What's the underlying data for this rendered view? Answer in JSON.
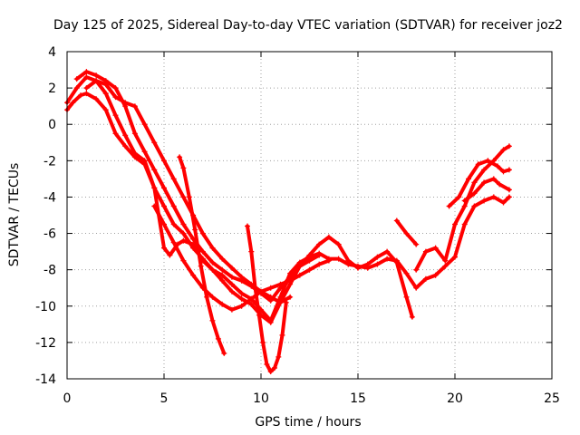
{
  "chart_data": {
    "type": "scatter",
    "title": "Day 125 of 2025, Sidereal Day-to-day VTEC variation (SDTVAR) for receiver joz2",
    "xlabel": "GPS time / hours",
    "ylabel": "SDTVAR / TECUs",
    "xlim": [
      0,
      25
    ],
    "ylim": [
      -14,
      4
    ],
    "x_ticks": [
      0,
      5,
      10,
      15,
      20,
      25
    ],
    "y_ticks": [
      4,
      2,
      0,
      -2,
      -4,
      -6,
      -8,
      -10,
      -12,
      -14
    ],
    "grid": true,
    "legend": "none",
    "marker": "plus",
    "color": "#ff0000",
    "series": [
      {
        "x": [
          0.0,
          0.3,
          0.7,
          1.0,
          1.5,
          2.0,
          2.5,
          3.0,
          3.5,
          4.0,
          4.5,
          5.0,
          5.3,
          5.7,
          6.0,
          6.5,
          7.0,
          7.5,
          8.0,
          8.5,
          9.0,
          9.5,
          10.0,
          10.5,
          11.0,
          11.5,
          12.0,
          12.5,
          13.0,
          13.5,
          14.0,
          14.5,
          15.0,
          15.5,
          16.0,
          16.5,
          17.0,
          17.5,
          18.0,
          18.5,
          19.0,
          19.5,
          20.0,
          20.5,
          21.0,
          21.5,
          22.0,
          22.5,
          22.8
        ],
        "y": [
          0.8,
          1.2,
          1.6,
          1.7,
          1.4,
          0.8,
          -0.5,
          -1.2,
          -1.8,
          -2.2,
          -3.5,
          -6.8,
          -7.2,
          -6.6,
          -6.4,
          -6.6,
          -7.5,
          -8.0,
          -8.3,
          -8.8,
          -9.3,
          -9.6,
          -10.2,
          -10.8,
          -9.5,
          -8.2,
          -7.6,
          -7.3,
          -7.1,
          -7.4,
          -7.4,
          -7.7,
          -7.8,
          -7.9,
          -7.7,
          -7.4,
          -7.5,
          -8.2,
          -9.0,
          -8.5,
          -8.3,
          -7.8,
          -7.3,
          -5.5,
          -4.5,
          -4.2,
          -4.0,
          -4.3,
          -4.0
        ]
      },
      {
        "x": [
          0.0,
          0.5,
          1.0,
          1.5,
          2.0,
          2.5,
          3.0,
          3.5,
          4.0,
          4.5,
          5.0,
          5.5,
          6.0,
          6.5,
          7.0,
          7.5,
          8.0,
          8.5,
          9.0,
          9.5,
          10.0,
          10.5,
          11.0,
          11.5,
          12.0,
          12.5,
          13.0,
          13.5,
          14.0,
          14.5,
          15.0,
          15.5,
          16.0,
          16.5,
          17.0,
          17.5,
          17.8
        ],
        "y": [
          1.2,
          2.0,
          2.6,
          2.4,
          1.7,
          0.5,
          -0.6,
          -1.6,
          -2.0,
          -3.5,
          -4.5,
          -5.5,
          -6.0,
          -6.8,
          -7.4,
          -8.0,
          -8.6,
          -9.2,
          -9.6,
          -9.9,
          -10.5,
          -10.9,
          -9.8,
          -8.8,
          -7.8,
          -7.2,
          -6.6,
          -6.2,
          -6.6,
          -7.5,
          -7.9,
          -7.7,
          -7.3,
          -7.0,
          -7.6,
          -9.5,
          -10.6
        ]
      },
      {
        "x": [
          0.5,
          1.0,
          1.5,
          2.0,
          2.5,
          3.0,
          3.5,
          4.0,
          4.5,
          5.0,
          5.5,
          6.0,
          6.5,
          7.0,
          7.5,
          8.0,
          8.5,
          9.0,
          9.5,
          10.0,
          10.5,
          11.0,
          11.5,
          12.0,
          12.5,
          13.0
        ],
        "y": [
          2.5,
          2.9,
          2.7,
          2.4,
          2.0,
          1.0,
          -0.5,
          -1.5,
          -2.5,
          -3.5,
          -4.5,
          -5.5,
          -6.3,
          -7.0,
          -7.6,
          -8.0,
          -8.4,
          -8.6,
          -8.9,
          -9.3,
          -9.7,
          -9.0,
          -8.4,
          -7.8,
          -7.5,
          -7.2
        ]
      },
      {
        "x": [
          1.0,
          1.5,
          2.0,
          2.5,
          3.0,
          3.5,
          4.0,
          4.5,
          5.0,
          5.5,
          6.0,
          6.5,
          7.0,
          7.5,
          8.0,
          8.5,
          9.0,
          9.5,
          10.0,
          10.5,
          11.0,
          11.5
        ],
        "y": [
          2.0,
          2.4,
          2.2,
          1.5,
          1.2,
          1.0,
          0.0,
          -1.0,
          -2.0,
          -3.0,
          -4.0,
          -5.0,
          -6.0,
          -6.8,
          -7.4,
          -7.9,
          -8.4,
          -8.8,
          -9.2,
          -9.5,
          -9.8,
          -9.5
        ]
      },
      {
        "x": [
          4.5,
          5.0,
          5.5,
          6.0,
          6.5,
          7.0,
          7.5,
          8.0,
          8.5,
          9.0,
          9.5,
          10.0,
          10.5,
          11.0,
          11.5,
          12.0,
          12.5,
          13.0,
          13.5
        ],
        "y": [
          -4.5,
          -5.5,
          -6.5,
          -7.5,
          -8.3,
          -9.0,
          -9.5,
          -9.9,
          -10.2,
          -10.0,
          -9.6,
          -9.2,
          -9.0,
          -8.8,
          -8.6,
          -8.3,
          -8.0,
          -7.7,
          -7.5
        ]
      },
      {
        "x": [
          5.8,
          6.0,
          6.3,
          6.6,
          6.9,
          7.2,
          7.5,
          7.8,
          8.1
        ],
        "y": [
          -1.8,
          -2.4,
          -4.0,
          -5.8,
          -7.8,
          -9.5,
          -10.8,
          -11.8,
          -12.6
        ]
      },
      {
        "x": [
          9.3,
          9.5,
          9.7,
          9.9,
          10.1,
          10.3,
          10.5,
          10.7,
          10.9,
          11.1,
          11.3
        ],
        "y": [
          -5.6,
          -7.0,
          -9.0,
          -10.5,
          -12.0,
          -13.2,
          -13.6,
          -13.4,
          -12.8,
          -11.6,
          -9.8
        ]
      },
      {
        "x": [
          17.0,
          17.5,
          18.0
        ],
        "y": [
          -5.3,
          -6.0,
          -6.6
        ]
      },
      {
        "x": [
          18.0,
          18.5,
          19.0,
          19.5,
          20.0,
          20.5,
          21.0,
          21.5,
          22.0,
          22.5,
          22.8
        ],
        "y": [
          -8.0,
          -7.0,
          -6.8,
          -7.5,
          -5.5,
          -4.5,
          -3.2,
          -2.5,
          -2.0,
          -1.4,
          -1.2
        ]
      },
      {
        "x": [
          19.7,
          20.2,
          20.7,
          21.2,
          21.7,
          22.2,
          22.5,
          22.8
        ],
        "y": [
          -4.5,
          -4.0,
          -3.0,
          -2.2,
          -2.0,
          -2.3,
          -2.6,
          -2.5
        ]
      },
      {
        "x": [
          20.5,
          21.0,
          21.5,
          22.0,
          22.3,
          22.8
        ],
        "y": [
          -4.2,
          -3.8,
          -3.2,
          -3.0,
          -3.3,
          -3.6
        ]
      }
    ]
  }
}
